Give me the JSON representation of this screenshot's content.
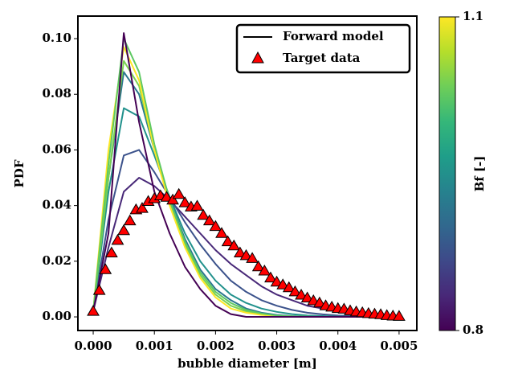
{
  "chart_data": {
    "type": "line",
    "x_label": "bubble diameter [m]",
    "y_label": "PDF",
    "xlim": [
      -0.00025,
      0.00529
    ],
    "ylim": [
      -0.0049,
      0.1081
    ],
    "xticks": [
      {
        "value": 0,
        "label": "0.000"
      },
      {
        "value": 0.001,
        "label": "0.001"
      },
      {
        "value": 0.002,
        "label": "0.002"
      },
      {
        "value": 0.003,
        "label": "0.003"
      },
      {
        "value": 0.004,
        "label": "0.004"
      },
      {
        "value": 0.005,
        "label": "0.005"
      }
    ],
    "yticks": [
      {
        "value": 0,
        "label": "0.00"
      },
      {
        "value": 0.02,
        "label": "0.02"
      },
      {
        "value": 0.04,
        "label": "0.04"
      },
      {
        "value": 0.06,
        "label": "0.06"
      },
      {
        "value": 0.08,
        "label": "0.08"
      },
      {
        "value": 0.1,
        "label": "0.10"
      }
    ],
    "legend_position": "upper right",
    "series_label": "Forward model",
    "x": [
      0,
      0.00025,
      0.0005,
      0.00075,
      0.001,
      0.00125,
      0.0015,
      0.00175,
      0.002,
      0.00225,
      0.0025,
      0.00275,
      0.003,
      0.00325,
      0.0035,
      0.00375,
      0.004,
      0.00425,
      0.0045,
      0.00475,
      0.005
    ],
    "series": [
      {
        "color": "#482878",
        "values": [
          0.002,
          0.025,
          0.045,
          0.05,
          0.047,
          0.042,
          0.036,
          0.03,
          0.024,
          0.019,
          0.015,
          0.011,
          0.008,
          0.006,
          0.004,
          0.003,
          0.002,
          0.0013,
          0.0008,
          0.0005,
          0.0003
        ]
      },
      {
        "color": "#3b528b",
        "values": [
          0.002,
          0.035,
          0.058,
          0.06,
          0.052,
          0.043,
          0.034,
          0.026,
          0.019,
          0.013,
          0.009,
          0.006,
          0.004,
          0.0025,
          0.0015,
          0.0009,
          0.0005,
          0.0003,
          0.0002,
          0.0001,
          0
        ]
      },
      {
        "color": "#21918c",
        "values": [
          0.002,
          0.045,
          0.075,
          0.072,
          0.058,
          0.043,
          0.03,
          0.02,
          0.013,
          0.008,
          0.005,
          0.003,
          0.0018,
          0.001,
          0.0005,
          0.0003,
          0.0001,
          0,
          0,
          0,
          0
        ]
      },
      {
        "color": "#2a788e",
        "values": [
          0.002,
          0.05,
          0.088,
          0.08,
          0.06,
          0.042,
          0.028,
          0.017,
          0.01,
          0.006,
          0.003,
          0.0015,
          0.0007,
          0.0003,
          0.0001,
          0,
          0,
          0,
          0,
          0,
          0
        ]
      },
      {
        "color": "#7ad151",
        "values": [
          0.002,
          0.05,
          0.092,
          0.083,
          0.06,
          0.041,
          0.026,
          0.015,
          0.008,
          0.004,
          0.002,
          0.001,
          0.0004,
          0.0002,
          0,
          0,
          0,
          0,
          0,
          0,
          0
        ]
      },
      {
        "color": "#fde725",
        "values": [
          0.002,
          0.06,
          0.097,
          0.085,
          0.06,
          0.04,
          0.025,
          0.014,
          0.007,
          0.003,
          0.0015,
          0.0007,
          0.0003,
          0.0001,
          0,
          0,
          0,
          0,
          0,
          0,
          0
        ]
      },
      {
        "color": "#5ec962",
        "values": [
          0.002,
          0.055,
          0.1,
          0.088,
          0.062,
          0.042,
          0.027,
          0.016,
          0.009,
          0.005,
          0.0025,
          0.0012,
          0.0005,
          0.0002,
          0.0001,
          0,
          0,
          0,
          0,
          0,
          0
        ]
      },
      {
        "color": "#440154",
        "values": [
          0.002,
          0.03,
          0.102,
          0.07,
          0.045,
          0.03,
          0.018,
          0.01,
          0.004,
          0.001,
          0,
          0,
          0,
          0,
          0,
          0,
          0,
          0,
          0,
          0,
          0
        ]
      }
    ],
    "target": {
      "name": "Target data",
      "color": "#ff0000",
      "x": [
        0,
        0.0001,
        0.0002,
        0.0003,
        0.0004,
        0.0005,
        0.0006,
        0.0007,
        0.0008,
        0.0009,
        0.001,
        0.0011,
        0.0012,
        0.0013,
        0.0014,
        0.0015,
        0.0016,
        0.0017,
        0.0018,
        0.0019,
        0.002,
        0.0021,
        0.0022,
        0.0023,
        0.0024,
        0.0025,
        0.0026,
        0.0027,
        0.0028,
        0.0029,
        0.003,
        0.0031,
        0.0032,
        0.0033,
        0.0034,
        0.0035,
        0.0036,
        0.0037,
        0.0038,
        0.0039,
        0.004,
        0.0041,
        0.0042,
        0.0043,
        0.0044,
        0.0045,
        0.0046,
        0.0047,
        0.0048,
        0.0049,
        0.005
      ],
      "values": [
        0.002,
        0.0095,
        0.017,
        0.023,
        0.0275,
        0.031,
        0.0345,
        0.0385,
        0.039,
        0.0415,
        0.0425,
        0.0435,
        0.043,
        0.042,
        0.044,
        0.041,
        0.0395,
        0.0398,
        0.0365,
        0.0345,
        0.0325,
        0.03,
        0.027,
        0.0255,
        0.023,
        0.022,
        0.021,
        0.018,
        0.0165,
        0.014,
        0.0125,
        0.0115,
        0.0105,
        0.009,
        0.0078,
        0.0068,
        0.0058,
        0.005,
        0.004,
        0.0035,
        0.003,
        0.0028,
        0.0022,
        0.0018,
        0.0015,
        0.0012,
        0.001,
        0.0008,
        0.0005,
        0.0003,
        0.0002
      ]
    },
    "colorbar": {
      "label": "Bf [-]",
      "lim": [
        0.8,
        1.1
      ],
      "ticks": [
        0.8,
        1.1
      ],
      "colors": [
        "#440154",
        "#482878",
        "#3e4989",
        "#31688e",
        "#26828e",
        "#1f9e89",
        "#35b779",
        "#6ece58",
        "#b5de2b",
        "#fde725"
      ]
    }
  }
}
